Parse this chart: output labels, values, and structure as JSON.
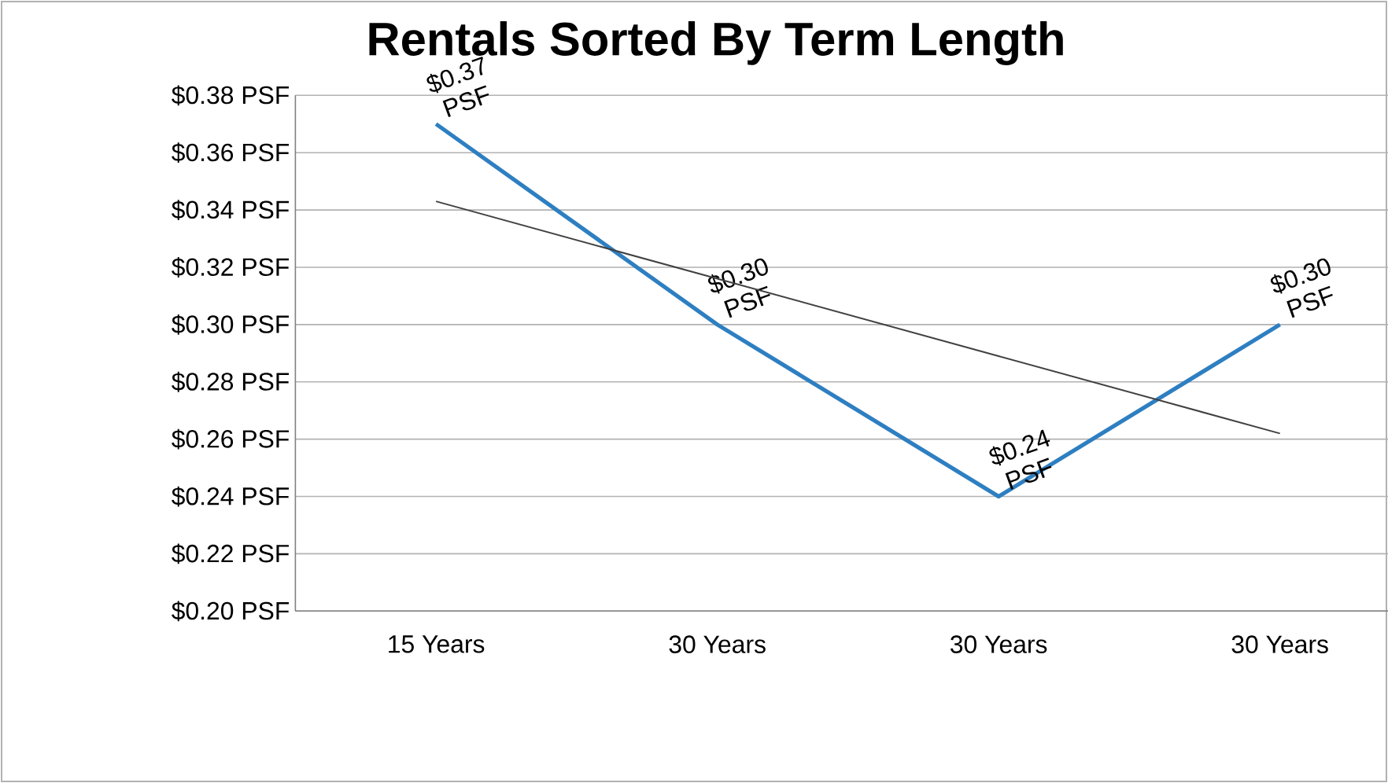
{
  "chart_data": {
    "type": "line",
    "title": "Rentals Sorted By Term Length",
    "categories": [
      "15 Years",
      "30 Years",
      "30 Years",
      "30 Years"
    ],
    "series": [
      {
        "color": "#2e7fc1",
        "values": [
          0.37,
          0.3,
          0.24,
          0.3
        ],
        "value_labels": [
          "$0.37 PSF",
          "$0.30 PSF",
          "$0.24 PSF",
          "$0.30 PSF"
        ]
      },
      {
        "type": "line",
        "color": "#404040",
        "values": [
          0.343,
          0.316,
          0.289,
          0.262
        ]
      }
    ],
    "ylim": [
      0.2,
      0.38
    ],
    "yticks": [
      {
        "value": 0.2,
        "label": "$0.20  PSF"
      },
      {
        "value": 0.22,
        "label": "$0.22  PSF"
      },
      {
        "value": 0.24,
        "label": "$0.24  PSF"
      },
      {
        "value": 0.26,
        "label": "$0.26  PSF"
      },
      {
        "value": 0.28,
        "label": "$0.28  PSF"
      },
      {
        "value": 0.3,
        "label": "$0.30  PSF"
      },
      {
        "value": 0.32,
        "label": "$0.32  PSF"
      },
      {
        "value": 0.34,
        "label": "$0.34  PSF"
      },
      {
        "value": 0.36,
        "label": "$0.36  PSF"
      },
      {
        "value": 0.38,
        "label": "$0.38  PSF"
      }
    ],
    "grid": "y"
  }
}
